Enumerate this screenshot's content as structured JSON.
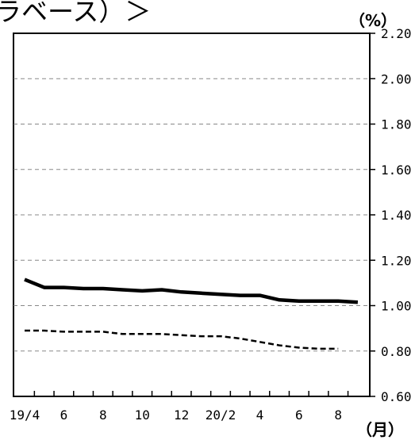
{
  "header": {
    "title_fragment": "ラベース）＞",
    "unit": "（%）",
    "x_unit": "（月）"
  },
  "chart_data": {
    "type": "line",
    "title": "",
    "xlabel": "（月）",
    "ylabel": "（%）",
    "ylim": [
      0.6,
      2.2
    ],
    "grid": true,
    "y_ticks": [
      "0.60",
      "0.80",
      "1.00",
      "1.20",
      "1.40",
      "1.60",
      "1.80",
      "2.00",
      "2.20"
    ],
    "x": [
      "19/4",
      "5",
      "6",
      "7",
      "8",
      "9",
      "10",
      "11",
      "12",
      "20/1",
      "20/2",
      "3",
      "4",
      "5",
      "6",
      "7",
      "8",
      "9"
    ],
    "x_tick_labels": [
      "19/4",
      "",
      "6",
      "",
      "8",
      "",
      "10",
      "",
      "12",
      "",
      "20/2",
      "",
      "4",
      "",
      "6",
      "",
      "8",
      ""
    ],
    "series": [
      {
        "style": "solid",
        "color": "#000000",
        "values": [
          1.115,
          1.08,
          1.08,
          1.075,
          1.075,
          1.07,
          1.065,
          1.07,
          1.06,
          1.055,
          1.05,
          1.045,
          1.045,
          1.025,
          1.02,
          1.02,
          1.02,
          1.015
        ]
      },
      {
        "style": "dashed",
        "color": "#000000",
        "values": [
          0.89,
          0.89,
          0.885,
          0.885,
          0.885,
          0.875,
          0.875,
          0.875,
          0.87,
          0.865,
          0.865,
          0.855,
          0.84,
          0.825,
          0.815,
          0.81,
          0.81,
          null
        ]
      }
    ]
  }
}
